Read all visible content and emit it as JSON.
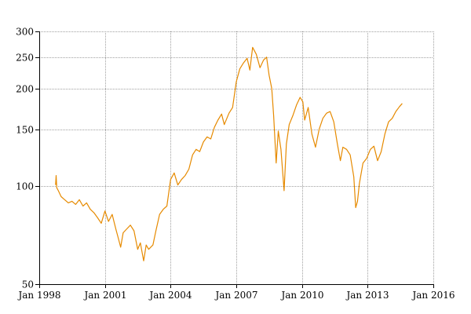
{
  "chart_data": {
    "type": "line",
    "title": "",
    "xlabel": "",
    "ylabel": "",
    "y_scale": "log",
    "ylim": [
      50,
      300
    ],
    "xlim": [
      "1998-01-01",
      "2016-01-01"
    ],
    "grid": true,
    "legend": "none",
    "x_ticks": [
      "Jan 1998",
      "Jan 2001",
      "Jan 2004",
      "Jan 2007",
      "Jan 2010",
      "Jan 2013",
      "Jan 2016"
    ],
    "y_ticks": [
      50,
      100,
      150,
      200,
      250,
      300
    ],
    "series": [
      {
        "color": "#e68a00",
        "points": [
          [
            "1998-10-01",
            101
          ],
          [
            "1998-10-10",
            108
          ],
          [
            "1998-10-20",
            99
          ],
          [
            "1998-11-15",
            97
          ],
          [
            "1999-01-01",
            93
          ],
          [
            "1999-03-01",
            91
          ],
          [
            "1999-05-01",
            89
          ],
          [
            "1999-07-01",
            90
          ],
          [
            "1999-09-01",
            88
          ],
          [
            "1999-11-01",
            91
          ],
          [
            "2000-01-01",
            87
          ],
          [
            "2000-03-01",
            89
          ],
          [
            "2000-05-01",
            85
          ],
          [
            "2000-07-01",
            83
          ],
          [
            "2000-09-01",
            80
          ],
          [
            "2000-11-01",
            77
          ],
          [
            "2001-01-01",
            84
          ],
          [
            "2001-03-01",
            78
          ],
          [
            "2001-05-01",
            82
          ],
          [
            "2001-07-01",
            74
          ],
          [
            "2001-08-15",
            69
          ],
          [
            "2001-09-20",
            65
          ],
          [
            "2001-11-01",
            72
          ],
          [
            "2002-01-01",
            74
          ],
          [
            "2002-03-01",
            76
          ],
          [
            "2002-05-01",
            73
          ],
          [
            "2002-07-01",
            64
          ],
          [
            "2002-08-15",
            67
          ],
          [
            "2002-10-09",
            59
          ],
          [
            "2002-11-20",
            66
          ],
          [
            "2003-01-01",
            64
          ],
          [
            "2003-03-12",
            66
          ],
          [
            "2003-05-01",
            73
          ],
          [
            "2003-07-01",
            82
          ],
          [
            "2003-09-01",
            85
          ],
          [
            "2003-11-01",
            87
          ],
          [
            "2004-01-01",
            105
          ],
          [
            "2004-03-01",
            110
          ],
          [
            "2004-05-01",
            101
          ],
          [
            "2004-07-01",
            105
          ],
          [
            "2004-09-01",
            108
          ],
          [
            "2004-11-01",
            113
          ],
          [
            "2005-01-01",
            125
          ],
          [
            "2005-03-01",
            130
          ],
          [
            "2005-05-01",
            128
          ],
          [
            "2005-07-01",
            137
          ],
          [
            "2005-09-01",
            142
          ],
          [
            "2005-11-01",
            140
          ],
          [
            "2006-01-01",
            152
          ],
          [
            "2006-03-01",
            160
          ],
          [
            "2006-05-01",
            167
          ],
          [
            "2006-06-15",
            155
          ],
          [
            "2006-09-01",
            168
          ],
          [
            "2006-11-01",
            175
          ],
          [
            "2007-01-01",
            210
          ],
          [
            "2007-03-01",
            230
          ],
          [
            "2007-05-01",
            240
          ],
          [
            "2007-07-01",
            248
          ],
          [
            "2007-08-15",
            228
          ],
          [
            "2007-10-01",
            268
          ],
          [
            "2007-12-01",
            255
          ],
          [
            "2008-02-01",
            232
          ],
          [
            "2008-04-01",
            245
          ],
          [
            "2008-05-20",
            250
          ],
          [
            "2008-07-01",
            220
          ],
          [
            "2008-08-15",
            200
          ],
          [
            "2008-09-15",
            165
          ],
          [
            "2008-10-27",
            118
          ],
          [
            "2008-12-01",
            148
          ],
          [
            "2009-01-15",
            130
          ],
          [
            "2009-03-09",
            97
          ],
          [
            "2009-04-15",
            135
          ],
          [
            "2009-06-01",
            155
          ],
          [
            "2009-08-01",
            165
          ],
          [
            "2009-10-01",
            178
          ],
          [
            "2009-12-01",
            188
          ],
          [
            "2010-01-15",
            182
          ],
          [
            "2010-02-15",
            160
          ],
          [
            "2010-04-15",
            175
          ],
          [
            "2010-06-15",
            145
          ],
          [
            "2010-08-15",
            132
          ],
          [
            "2010-10-15",
            150
          ],
          [
            "2010-12-15",
            162
          ],
          [
            "2011-02-15",
            168
          ],
          [
            "2011-04-15",
            170
          ],
          [
            "2011-06-15",
            158
          ],
          [
            "2011-08-15",
            135
          ],
          [
            "2011-10-04",
            120
          ],
          [
            "2011-11-15",
            132
          ],
          [
            "2012-01-15",
            130
          ],
          [
            "2012-03-15",
            125
          ],
          [
            "2012-05-15",
            107
          ],
          [
            "2012-06-15",
            86
          ],
          [
            "2012-07-15",
            90
          ],
          [
            "2012-08-15",
            102
          ],
          [
            "2012-10-15",
            118
          ],
          [
            "2012-12-15",
            122
          ],
          [
            "2013-02-15",
            130
          ],
          [
            "2013-04-15",
            133
          ],
          [
            "2013-06-15",
            120
          ],
          [
            "2013-08-15",
            128
          ],
          [
            "2013-10-15",
            145
          ],
          [
            "2013-12-15",
            158
          ],
          [
            "2014-02-15",
            162
          ],
          [
            "2014-04-15",
            170
          ],
          [
            "2014-06-15",
            176
          ],
          [
            "2014-08-01",
            180
          ]
        ]
      }
    ]
  }
}
